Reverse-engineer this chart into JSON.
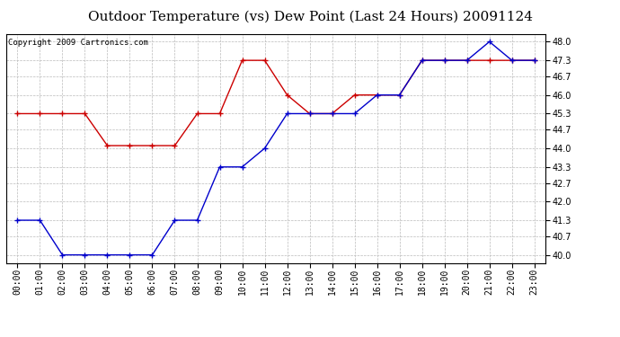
{
  "title": "Outdoor Temperature (vs) Dew Point (Last 24 Hours) 20091124",
  "copyright": "Copyright 2009 Cartronics.com",
  "x_labels": [
    "00:00",
    "01:00",
    "02:00",
    "03:00",
    "04:00",
    "05:00",
    "06:00",
    "07:00",
    "08:00",
    "09:00",
    "10:00",
    "11:00",
    "12:00",
    "13:00",
    "14:00",
    "15:00",
    "16:00",
    "17:00",
    "18:00",
    "19:00",
    "20:00",
    "21:00",
    "22:00",
    "23:00"
  ],
  "temp_data": [
    41.3,
    41.3,
    40.0,
    40.0,
    40.0,
    40.0,
    40.0,
    41.3,
    41.3,
    43.3,
    43.3,
    44.0,
    45.3,
    45.3,
    45.3,
    45.3,
    46.0,
    46.0,
    47.3,
    47.3,
    47.3,
    48.0,
    47.3,
    47.3
  ],
  "dew_data": [
    45.3,
    45.3,
    45.3,
    45.3,
    44.1,
    44.1,
    44.1,
    44.1,
    45.3,
    45.3,
    47.3,
    47.3,
    46.0,
    45.3,
    45.3,
    46.0,
    46.0,
    46.0,
    47.3,
    47.3,
    47.3,
    47.3,
    47.3,
    47.3
  ],
  "temp_color": "#0000CC",
  "dew_color": "#CC0000",
  "bg_color": "#FFFFFF",
  "plot_bg_color": "#FFFFFF",
  "grid_color": "#BBBBBB",
  "ylim": [
    39.7,
    48.3
  ],
  "yticks": [
    40.0,
    40.7,
    41.3,
    42.0,
    42.7,
    43.3,
    44.0,
    44.7,
    45.3,
    46.0,
    46.7,
    47.3,
    48.0
  ],
  "title_fontsize": 11,
  "copyright_fontsize": 6.5,
  "tick_fontsize": 7,
  "marker_size": 4,
  "line_width": 1.0
}
